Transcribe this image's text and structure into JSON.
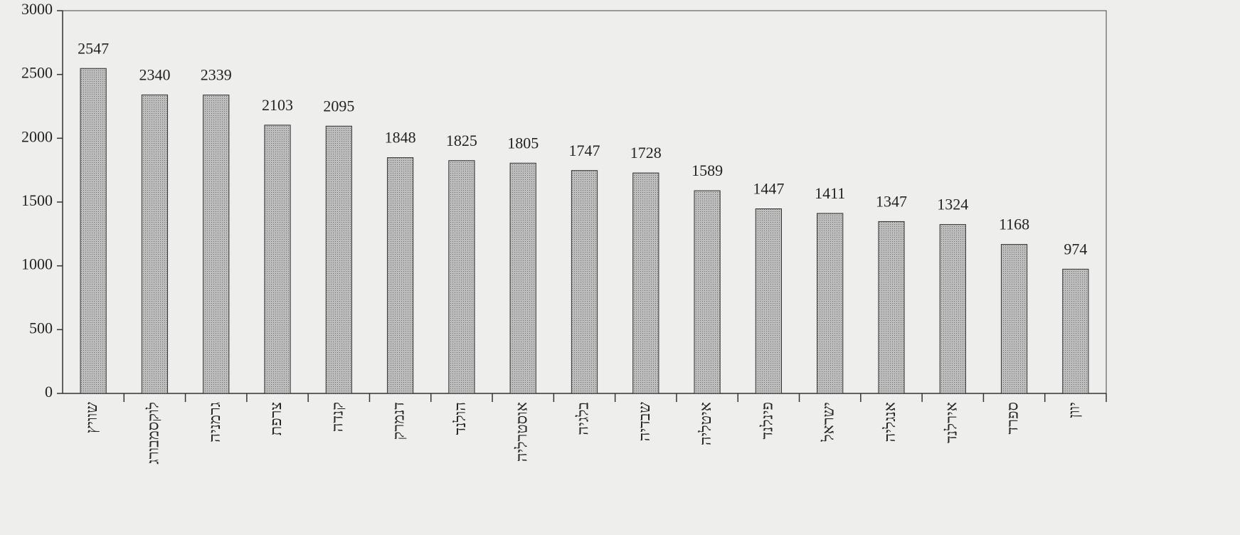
{
  "chart_data": {
    "type": "bar",
    "categories": [
      "שוויץ",
      "לוקסמבורג",
      "גרמניה",
      "צרפת",
      "קנדה",
      "דנמרק",
      "הולנד",
      "אוסטרליה",
      "בלגיה",
      "שבדיה",
      "איטליה",
      "פינלנד",
      "ישראל",
      "אנגליה",
      "אירלנד",
      "ספרד",
      "יוון"
    ],
    "values": [
      2547,
      2340,
      2339,
      2103,
      2095,
      1848,
      1825,
      1805,
      1747,
      1728,
      1589,
      1447,
      1411,
      1347,
      1324,
      1168,
      974
    ],
    "color": "#a8a8a8",
    "ylim": [
      0,
      3000
    ],
    "yticks": [
      0,
      500,
      1000,
      1500,
      2000,
      2500,
      3000
    ],
    "grid": false
  }
}
